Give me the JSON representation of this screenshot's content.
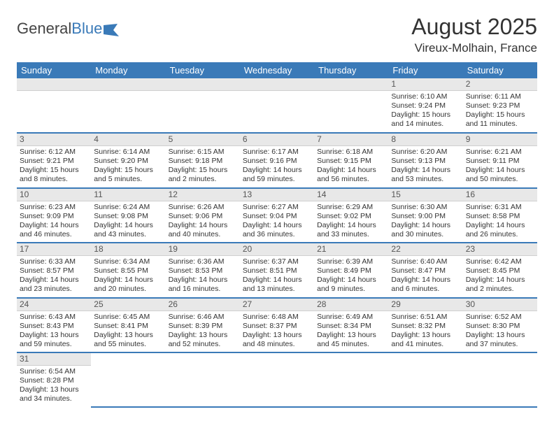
{
  "logo": {
    "part1": "General",
    "part2": "Blue"
  },
  "title": "August 2025",
  "location": "Vireux-Molhain, France",
  "colors": {
    "header_bg": "#3a7ab8",
    "header_text": "#ffffff",
    "daynum_bg": "#e8e8e8",
    "row_divider": "#3a7ab8",
    "body_text": "#333333",
    "page_bg": "#ffffff"
  },
  "typography": {
    "title_fontsize": 32,
    "location_fontsize": 17,
    "header_fontsize": 13,
    "cell_fontsize": 10.5
  },
  "weekdays": [
    "Sunday",
    "Monday",
    "Tuesday",
    "Wednesday",
    "Thursday",
    "Friday",
    "Saturday"
  ],
  "grid": [
    [
      null,
      null,
      null,
      null,
      null,
      {
        "n": "1",
        "sr": "Sunrise: 6:10 AM",
        "ss": "Sunset: 9:24 PM",
        "dl": "Daylight: 15 hours and 14 minutes."
      },
      {
        "n": "2",
        "sr": "Sunrise: 6:11 AM",
        "ss": "Sunset: 9:23 PM",
        "dl": "Daylight: 15 hours and 11 minutes."
      }
    ],
    [
      {
        "n": "3",
        "sr": "Sunrise: 6:12 AM",
        "ss": "Sunset: 9:21 PM",
        "dl": "Daylight: 15 hours and 8 minutes."
      },
      {
        "n": "4",
        "sr": "Sunrise: 6:14 AM",
        "ss": "Sunset: 9:20 PM",
        "dl": "Daylight: 15 hours and 5 minutes."
      },
      {
        "n": "5",
        "sr": "Sunrise: 6:15 AM",
        "ss": "Sunset: 9:18 PM",
        "dl": "Daylight: 15 hours and 2 minutes."
      },
      {
        "n": "6",
        "sr": "Sunrise: 6:17 AM",
        "ss": "Sunset: 9:16 PM",
        "dl": "Daylight: 14 hours and 59 minutes."
      },
      {
        "n": "7",
        "sr": "Sunrise: 6:18 AM",
        "ss": "Sunset: 9:15 PM",
        "dl": "Daylight: 14 hours and 56 minutes."
      },
      {
        "n": "8",
        "sr": "Sunrise: 6:20 AM",
        "ss": "Sunset: 9:13 PM",
        "dl": "Daylight: 14 hours and 53 minutes."
      },
      {
        "n": "9",
        "sr": "Sunrise: 6:21 AM",
        "ss": "Sunset: 9:11 PM",
        "dl": "Daylight: 14 hours and 50 minutes."
      }
    ],
    [
      {
        "n": "10",
        "sr": "Sunrise: 6:23 AM",
        "ss": "Sunset: 9:09 PM",
        "dl": "Daylight: 14 hours and 46 minutes."
      },
      {
        "n": "11",
        "sr": "Sunrise: 6:24 AM",
        "ss": "Sunset: 9:08 PM",
        "dl": "Daylight: 14 hours and 43 minutes."
      },
      {
        "n": "12",
        "sr": "Sunrise: 6:26 AM",
        "ss": "Sunset: 9:06 PM",
        "dl": "Daylight: 14 hours and 40 minutes."
      },
      {
        "n": "13",
        "sr": "Sunrise: 6:27 AM",
        "ss": "Sunset: 9:04 PM",
        "dl": "Daylight: 14 hours and 36 minutes."
      },
      {
        "n": "14",
        "sr": "Sunrise: 6:29 AM",
        "ss": "Sunset: 9:02 PM",
        "dl": "Daylight: 14 hours and 33 minutes."
      },
      {
        "n": "15",
        "sr": "Sunrise: 6:30 AM",
        "ss": "Sunset: 9:00 PM",
        "dl": "Daylight: 14 hours and 30 minutes."
      },
      {
        "n": "16",
        "sr": "Sunrise: 6:31 AM",
        "ss": "Sunset: 8:58 PM",
        "dl": "Daylight: 14 hours and 26 minutes."
      }
    ],
    [
      {
        "n": "17",
        "sr": "Sunrise: 6:33 AM",
        "ss": "Sunset: 8:57 PM",
        "dl": "Daylight: 14 hours and 23 minutes."
      },
      {
        "n": "18",
        "sr": "Sunrise: 6:34 AM",
        "ss": "Sunset: 8:55 PM",
        "dl": "Daylight: 14 hours and 20 minutes."
      },
      {
        "n": "19",
        "sr": "Sunrise: 6:36 AM",
        "ss": "Sunset: 8:53 PM",
        "dl": "Daylight: 14 hours and 16 minutes."
      },
      {
        "n": "20",
        "sr": "Sunrise: 6:37 AM",
        "ss": "Sunset: 8:51 PM",
        "dl": "Daylight: 14 hours and 13 minutes."
      },
      {
        "n": "21",
        "sr": "Sunrise: 6:39 AM",
        "ss": "Sunset: 8:49 PM",
        "dl": "Daylight: 14 hours and 9 minutes."
      },
      {
        "n": "22",
        "sr": "Sunrise: 6:40 AM",
        "ss": "Sunset: 8:47 PM",
        "dl": "Daylight: 14 hours and 6 minutes."
      },
      {
        "n": "23",
        "sr": "Sunrise: 6:42 AM",
        "ss": "Sunset: 8:45 PM",
        "dl": "Daylight: 14 hours and 2 minutes."
      }
    ],
    [
      {
        "n": "24",
        "sr": "Sunrise: 6:43 AM",
        "ss": "Sunset: 8:43 PM",
        "dl": "Daylight: 13 hours and 59 minutes."
      },
      {
        "n": "25",
        "sr": "Sunrise: 6:45 AM",
        "ss": "Sunset: 8:41 PM",
        "dl": "Daylight: 13 hours and 55 minutes."
      },
      {
        "n": "26",
        "sr": "Sunrise: 6:46 AM",
        "ss": "Sunset: 8:39 PM",
        "dl": "Daylight: 13 hours and 52 minutes."
      },
      {
        "n": "27",
        "sr": "Sunrise: 6:48 AM",
        "ss": "Sunset: 8:37 PM",
        "dl": "Daylight: 13 hours and 48 minutes."
      },
      {
        "n": "28",
        "sr": "Sunrise: 6:49 AM",
        "ss": "Sunset: 8:34 PM",
        "dl": "Daylight: 13 hours and 45 minutes."
      },
      {
        "n": "29",
        "sr": "Sunrise: 6:51 AM",
        "ss": "Sunset: 8:32 PM",
        "dl": "Daylight: 13 hours and 41 minutes."
      },
      {
        "n": "30",
        "sr": "Sunrise: 6:52 AM",
        "ss": "Sunset: 8:30 PM",
        "dl": "Daylight: 13 hours and 37 minutes."
      }
    ],
    [
      {
        "n": "31",
        "sr": "Sunrise: 6:54 AM",
        "ss": "Sunset: 8:28 PM",
        "dl": "Daylight: 13 hours and 34 minutes."
      },
      null,
      null,
      null,
      null,
      null,
      null
    ]
  ]
}
